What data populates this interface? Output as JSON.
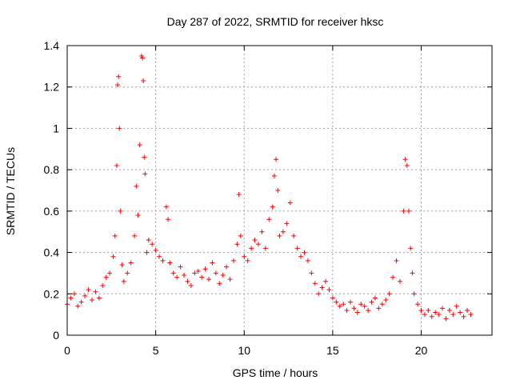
{
  "chart_data": {
    "type": "scatter",
    "title": "Day 287 of 2022, SRMTID for receiver hksc",
    "xlabel": "GPS time / hours",
    "ylabel": "SRMTID / TECUs",
    "xlim": [
      0,
      24
    ],
    "ylim": [
      0,
      1.4
    ],
    "xticks": [
      0,
      5,
      10,
      15,
      20
    ],
    "xtick_labels": [
      "0",
      "5",
      "10",
      "15",
      "20"
    ],
    "yticks": [
      0,
      0.2,
      0.4,
      0.6,
      0.8,
      1.0,
      1.2,
      1.4
    ],
    "ytick_labels": [
      "0",
      "0.2",
      "0.4",
      "0.6",
      "0.8",
      "1",
      "1.2",
      "1.4"
    ],
    "grid": true,
    "marker": "+",
    "color": "#ff0000",
    "series": [
      {
        "name": "SRMTID",
        "x": [
          0.0,
          0.2,
          0.4,
          0.6,
          0.8,
          1.0,
          1.2,
          1.4,
          1.6,
          1.8,
          2.0,
          2.2,
          2.4,
          2.6,
          2.7,
          2.8,
          2.85,
          2.9,
          2.95,
          3.0,
          3.1,
          3.2,
          3.4,
          3.6,
          3.8,
          3.9,
          4.0,
          4.1,
          4.2,
          4.25,
          4.3,
          4.35,
          4.4,
          4.5,
          4.6,
          4.8,
          5.0,
          5.2,
          5.4,
          5.6,
          5.7,
          5.8,
          6.0,
          6.2,
          6.4,
          6.6,
          6.8,
          7.0,
          7.2,
          7.4,
          7.6,
          7.8,
          8.0,
          8.2,
          8.4,
          8.6,
          8.8,
          9.0,
          9.2,
          9.4,
          9.6,
          9.7,
          9.8,
          10.0,
          10.2,
          10.4,
          10.6,
          10.8,
          11.0,
          11.2,
          11.4,
          11.6,
          11.7,
          11.8,
          11.9,
          12.0,
          12.2,
          12.4,
          12.6,
          12.8,
          13.0,
          13.2,
          13.4,
          13.6,
          13.8,
          14.0,
          14.2,
          14.4,
          14.6,
          14.8,
          15.0,
          15.2,
          15.4,
          15.6,
          15.8,
          16.0,
          16.2,
          16.4,
          16.6,
          16.8,
          17.0,
          17.2,
          17.4,
          17.6,
          17.8,
          18.0,
          18.2,
          18.4,
          18.6,
          18.8,
          19.0,
          19.1,
          19.2,
          19.3,
          19.4,
          19.5,
          19.6,
          19.8,
          20.0,
          20.2,
          20.4,
          20.6,
          20.8,
          21.0,
          21.2,
          21.4,
          21.6,
          21.8,
          22.0,
          22.2,
          22.4,
          22.6,
          22.8
        ],
        "y": [
          0.15,
          0.18,
          0.2,
          0.14,
          0.16,
          0.19,
          0.22,
          0.17,
          0.21,
          0.18,
          0.24,
          0.28,
          0.3,
          0.38,
          0.48,
          0.82,
          1.21,
          1.25,
          1.0,
          0.6,
          0.34,
          0.26,
          0.3,
          0.35,
          0.48,
          0.72,
          0.58,
          0.92,
          1.35,
          1.34,
          1.23,
          0.86,
          0.78,
          0.4,
          0.46,
          0.44,
          0.41,
          0.38,
          0.36,
          0.62,
          0.56,
          0.35,
          0.3,
          0.28,
          0.33,
          0.29,
          0.26,
          0.24,
          0.3,
          0.31,
          0.28,
          0.32,
          0.27,
          0.35,
          0.3,
          0.25,
          0.29,
          0.33,
          0.27,
          0.36,
          0.44,
          0.68,
          0.48,
          0.38,
          0.36,
          0.42,
          0.46,
          0.44,
          0.5,
          0.42,
          0.56,
          0.62,
          0.77,
          0.85,
          0.7,
          0.48,
          0.5,
          0.54,
          0.64,
          0.48,
          0.42,
          0.38,
          0.4,
          0.36,
          0.3,
          0.25,
          0.2,
          0.23,
          0.26,
          0.22,
          0.18,
          0.16,
          0.14,
          0.15,
          0.12,
          0.16,
          0.13,
          0.11,
          0.15,
          0.14,
          0.12,
          0.16,
          0.18,
          0.13,
          0.15,
          0.17,
          0.2,
          0.28,
          0.36,
          0.26,
          0.6,
          0.85,
          0.82,
          0.6,
          0.42,
          0.3,
          0.2,
          0.15,
          0.12,
          0.1,
          0.12,
          0.09,
          0.11,
          0.1,
          0.13,
          0.08,
          0.12,
          0.1,
          0.14,
          0.11,
          0.09,
          0.12,
          0.1
        ]
      }
    ]
  }
}
